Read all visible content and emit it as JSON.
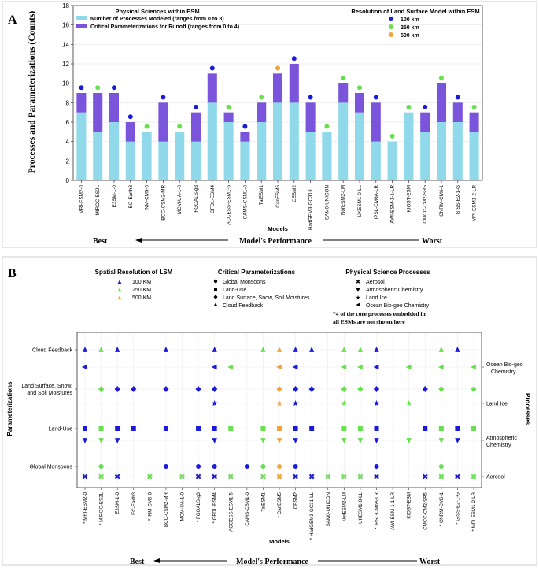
{
  "colors": {
    "processes": "#8fd9ea",
    "parameterizations": "#7a55dc",
    "res_100": "#1a1adc",
    "res_250": "#66e04c",
    "res_500": "#f0a43a"
  },
  "panel_labels": {
    "a": "A",
    "b": "B"
  },
  "panel_a": {
    "legend_left": {
      "title": "Physical Sciences within ESM",
      "processes": "Number of Processes Modeled (ranges from 0 to 8)",
      "parameterizations": "Critical Parameterizations for Runoff (ranges from 0 to 4)"
    },
    "legend_right": {
      "title": "Resolution of Land Surface Model within ESM",
      "items": [
        "100 km",
        "250 km",
        "500 km"
      ]
    },
    "xlabel": "Models",
    "performance": {
      "best": "Best",
      "label": "Model's Performance",
      "worst": "Worst"
    }
  },
  "chart_data": [
    {
      "type": "bar",
      "stacked": true,
      "ylabel": "Processes and Parameterizations (Counts)",
      "xlabel": "Models",
      "ylim": [
        0,
        18
      ],
      "yticks": [
        0,
        2,
        4,
        6,
        8,
        10,
        12,
        14,
        16,
        18
      ],
      "categories": [
        "MRI-ESM2-0",
        "MIROC-ES2L",
        "E3SM-1-0",
        "EC-Earth3",
        "INM-CM5-0",
        "BCC-CSM2-MR",
        "MCM-UA-1-0",
        "FGOALS-g3",
        "GFDL-ESM4",
        "ACCESS-ESM1-5",
        "CAMS-CSM1-0",
        "TaiESM1",
        "CanESM5",
        "CESM2",
        "HadGEM3-GC31-LL",
        "SAM0-UNICON",
        "NorESM2-LM",
        "UKESM1-0-LL",
        "IPSL-CM6A-LR",
        "AWI-ESM-1-1-LR",
        "KIOST-ESM",
        "CMCC-CM2-SR5",
        "CNRM-CM6-1",
        "GISS-E2-1-G",
        "MPI-ESM1-2-LR"
      ],
      "series": [
        {
          "name": "Number of Processes Modeled (ranges from 0 to 8)",
          "values": [
            7,
            5,
            6,
            4,
            5,
            4,
            5,
            4,
            8,
            6,
            4,
            6,
            8,
            8,
            5,
            5,
            8,
            7,
            4,
            4,
            7,
            5,
            6,
            6,
            5
          ]
        },
        {
          "name": "Critical Parameterizations for Runoff (ranges from 0 to 4)",
          "values": [
            2,
            4,
            3,
            2,
            0,
            4,
            0,
            3,
            3,
            1,
            1,
            2,
            3,
            4,
            3,
            0,
            2,
            2,
            4,
            0,
            0,
            2,
            4,
            2,
            2
          ]
        }
      ],
      "resolution": [
        "100 km",
        "250 km",
        "100 km",
        "100 km",
        "250 km",
        "100 km",
        "250 km",
        "100 km",
        "100 km",
        "250 km",
        "100 km",
        "250 km",
        "500 km",
        "100 km",
        "100 km",
        "250 km",
        "250 km",
        "250 km",
        "100 km",
        "250 km",
        "250 km",
        "100 km",
        "250 km",
        "100 km",
        "250 km"
      ]
    },
    {
      "type": "scatter",
      "xlabel": "Models",
      "ylabel_left": "Parameterizations",
      "ylabel_right": "Processes",
      "left_yticks": [
        "Cloud Feedback",
        "Land Surface, Snow, and Soil Moistures",
        "Land-Use",
        "Global Monsoons"
      ],
      "right_yticks": [
        "Ocean Bio-geo Chemistry",
        "Land Ice",
        "Atmospheric Chemistry",
        "Aerosol"
      ],
      "categories": [
        "* MRI-ESM2-0",
        "* MIROC-ES2L",
        "E3SM-1-0",
        "EC-Earth3",
        "* INM-CM5-0",
        "BCC-CSM2-MR",
        "MCM-UA-1-0",
        "* FGOALS-g3",
        "* GFDL-ESM4",
        "ACCESS-ESM1-5",
        "CAMS-CSM1-0",
        "TaiESM1",
        "* CanESM5",
        "CESM2",
        "* HadGEM3-GC31-LL",
        "SAM0-UNICON",
        "NorESM2-LM",
        "UKESM1-0-LL",
        "* IPSL-CM6A-LR",
        "AWI-ESM-1-1-LR",
        "KIOST-ESM",
        "CMCC-CM2-SR5",
        "* CNRM-CM6-1",
        "* GISS-E2-1-G",
        "* MPI-ESM1-2-LR"
      ],
      "rows": [
        "Cloud Feedback",
        "Ocean Bio-geo Chemistry",
        "Land Surface, Snow, and Soil Moistures",
        "Land Ice",
        "Land-Use",
        "Atmospheric Chemistry",
        "Global Monsoons",
        "Aerosol"
      ],
      "presence": {
        "Cloud Feedback": [
          1,
          1,
          1,
          0,
          0,
          1,
          0,
          0,
          1,
          0,
          0,
          1,
          1,
          1,
          1,
          0,
          1,
          1,
          1,
          0,
          0,
          0,
          1,
          1,
          0
        ],
        "Ocean Bio-geo Chemistry": [
          1,
          0,
          0,
          0,
          0,
          0,
          0,
          0,
          1,
          1,
          0,
          0,
          1,
          1,
          0,
          0,
          1,
          1,
          1,
          0,
          1,
          0,
          1,
          0,
          1
        ],
        "Land Surface, Snow, and Soil Moistures": [
          0,
          1,
          1,
          1,
          0,
          1,
          0,
          1,
          1,
          0,
          0,
          0,
          1,
          1,
          1,
          0,
          1,
          1,
          1,
          0,
          0,
          1,
          1,
          0,
          1
        ],
        "Land Ice": [
          0,
          0,
          0,
          0,
          0,
          0,
          0,
          0,
          1,
          0,
          0,
          0,
          1,
          1,
          0,
          0,
          1,
          0,
          1,
          0,
          1,
          0,
          0,
          0,
          0
        ],
        "Land-Use": [
          1,
          1,
          1,
          1,
          0,
          1,
          0,
          1,
          1,
          1,
          0,
          1,
          1,
          1,
          1,
          0,
          1,
          1,
          1,
          0,
          0,
          1,
          1,
          1,
          1
        ],
        "Atmospheric Chemistry": [
          1,
          1,
          1,
          0,
          0,
          0,
          0,
          0,
          1,
          0,
          0,
          1,
          1,
          1,
          0,
          0,
          1,
          1,
          1,
          0,
          1,
          0,
          1,
          1,
          0
        ],
        "Global Monsoons": [
          0,
          1,
          0,
          0,
          0,
          1,
          0,
          1,
          1,
          0,
          1,
          1,
          1,
          1,
          0,
          0,
          0,
          0,
          1,
          0,
          0,
          0,
          1,
          0,
          0
        ],
        "Aerosol": [
          1,
          1,
          1,
          0,
          1,
          0,
          1,
          1,
          1,
          1,
          0,
          1,
          1,
          1,
          1,
          1,
          1,
          1,
          1,
          0,
          0,
          1,
          1,
          1,
          1
        ]
      }
    }
  ],
  "panel_b": {
    "legend_res": {
      "title": "Spatial Resolution of LSM",
      "items": [
        "100 KM",
        "250 KM",
        "500 KM"
      ]
    },
    "legend_param": {
      "title": "Critical Parameterizations",
      "items": [
        "Global Monsoons",
        "Land-Use",
        "Land Surface, Snow, Soil Moistures",
        "Cloud Feedback"
      ]
    },
    "legend_proc": {
      "title": "Physical Science Processes",
      "items": [
        "Aerosol",
        "Atmospheric Chemistry",
        "Land Ice",
        "Ocean Bio-geo Chemistry"
      ]
    },
    "note": "*4 of the core processes embedded in all ESMs are not shown here",
    "xlabel": "Models",
    "ylabel_left": "Parameterizations",
    "ylabel_right": "Processes",
    "performance": {
      "best": "Best",
      "label": "Model's Performance",
      "worst": "Worst"
    }
  }
}
